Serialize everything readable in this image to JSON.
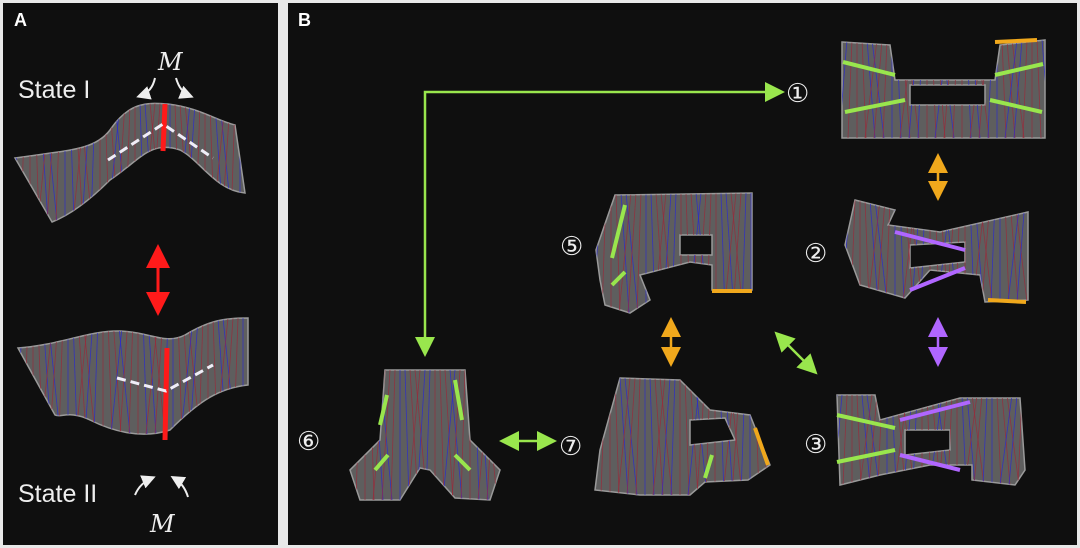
{
  "panel_a": {
    "label": "A",
    "state1": "State I",
    "state2": "State II",
    "moment1": "M",
    "moment2": "M"
  },
  "panel_b": {
    "label": "B",
    "states": [
      "①",
      "②",
      "③",
      "⑤",
      "⑥",
      "⑦"
    ]
  },
  "colors": {
    "background": "#0f0f0f",
    "hinge_red": "#ff1a1a",
    "green": "#99e64d",
    "orange": "#f0a81c",
    "purple": "#b066ff",
    "fold_blue": "#2a2ad0",
    "fold_red": "#9a2a3a"
  }
}
